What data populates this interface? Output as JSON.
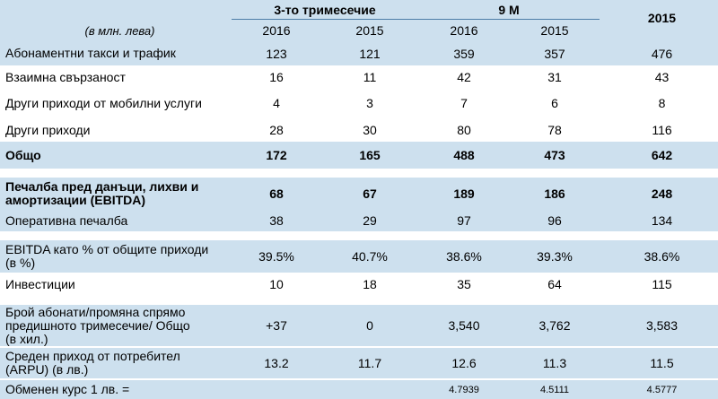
{
  "header": {
    "unit": "(в млн. лева)",
    "group_q3": "3-то тримесечие",
    "group_9m": "9 М",
    "year_full": "2015",
    "years": [
      "2016",
      "2015",
      "2016",
      "2015"
    ]
  },
  "rows": [
    {
      "label": "Абонаментни такси и трафик",
      "values": [
        "123",
        "121",
        "359",
        "357",
        "476"
      ]
    },
    {
      "label": "Взаимна свързаност",
      "values": [
        "16",
        "11",
        "42",
        "31",
        "43"
      ]
    },
    {
      "label": "Други приходи от мобилни услуги",
      "values": [
        "4",
        "3",
        "7",
        "6",
        "8"
      ]
    },
    {
      "label": "Други приходи",
      "values": [
        "28",
        "30",
        "80",
        "78",
        "116"
      ]
    },
    {
      "label": "Общо",
      "values": [
        "172",
        "165",
        "488",
        "473",
        "642"
      ]
    },
    {
      "label": "Печалба пред данъци, лихви и амортизации (EBITDA)",
      "values": [
        "68",
        "67",
        "189",
        "186",
        "248"
      ]
    },
    {
      "label": "Оперативна печалба",
      "values": [
        "38",
        "29",
        "97",
        "96",
        "134"
      ]
    },
    {
      "label": "EBITDA като % от общите приходи (в %)",
      "values": [
        "39.5%",
        "40.7%",
        "38.6%",
        "39.3%",
        "38.6%"
      ]
    },
    {
      "label": "Инвестиции",
      "values": [
        "10",
        "18",
        "35",
        "64",
        "115"
      ]
    },
    {
      "label": "Брой абонати/промяна спрямо предишното тримесечие/ Общо (в хил.)",
      "values": [
        "+37",
        "0",
        "3,540",
        "3,762",
        "3,583"
      ]
    },
    {
      "label": "Среден приход от потребител (ARPU) (в лв.)",
      "values": [
        "13.2",
        "11.7",
        "12.6",
        "11.3",
        "11.5"
      ]
    },
    {
      "label": "Обменен курс 1 лв. =",
      "values": [
        "",
        "",
        "4.7939",
        "4.5111",
        "4.5777"
      ]
    }
  ]
}
